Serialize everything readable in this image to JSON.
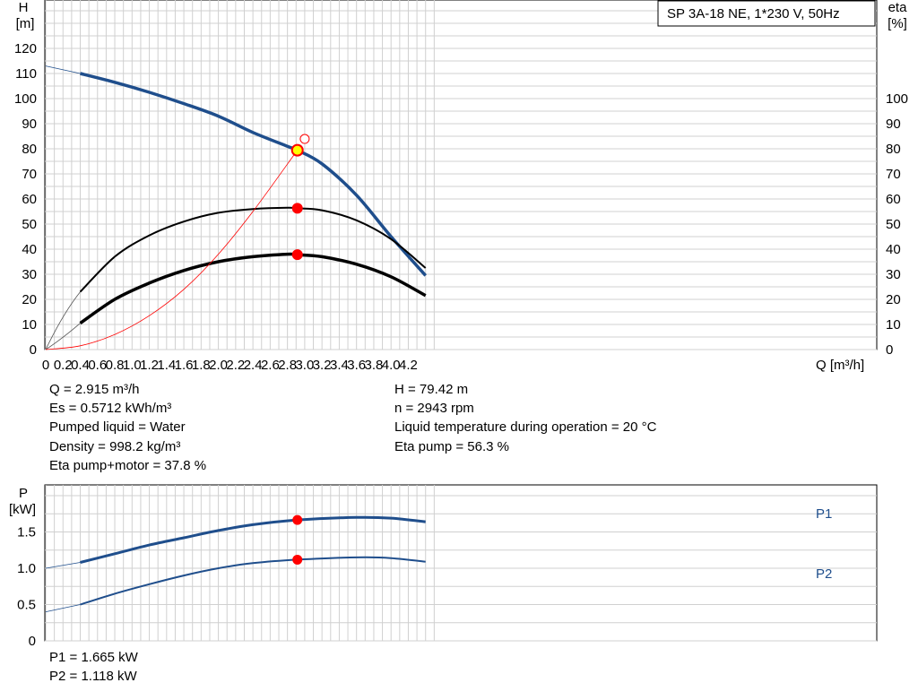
{
  "chart_data": [
    {
      "type": "line",
      "title": "SP 3A-18 NE, 1*230 V, 50Hz",
      "xlabel": "Q [m³/h]",
      "ylabel_left": [
        "H",
        "[m]"
      ],
      "ylabel_right": [
        "eta",
        "[%]"
      ],
      "xlim": [
        0,
        4.4
      ],
      "ylim": [
        0,
        130
      ],
      "x_ticks": [
        "0",
        "0.2",
        "0.4",
        "0.6",
        "0.8",
        "1.0",
        "1.2",
        "1.4",
        "1.6",
        "1.8",
        "2.0",
        "2.2",
        "2.4",
        "2.6",
        "2.8",
        "3.0",
        "3.2",
        "3.4",
        "3.6",
        "3.8",
        "4.0",
        "4.2"
      ],
      "y_ticks_left": [
        "0",
        "10",
        "20",
        "30",
        "40",
        "50",
        "60",
        "70",
        "80",
        "90",
        "100",
        "110",
        "120"
      ],
      "y_ticks_right": [
        "0",
        "10",
        "20",
        "30",
        "40",
        "50",
        "60",
        "70",
        "80",
        "90",
        "100"
      ],
      "grid": true,
      "series": [
        {
          "color": "#1f4e8c",
          "x": [
            0.4,
            0.8,
            1.2,
            1.6,
            2.0,
            2.4,
            2.8,
            2.915,
            3.2,
            3.6,
            4.0,
            4.4
          ],
          "values": [
            110,
            106.5,
            102.5,
            98,
            93,
            86.5,
            81,
            79.42,
            74,
            61.5,
            45,
            29.5
          ],
          "extrapolated_to": [
            0,
            113
          ]
        },
        {
          "color": "#000000",
          "x": [
            0.4,
            0.8,
            1.2,
            1.6,
            2.0,
            2.4,
            2.8,
            2.915,
            3.2,
            3.6,
            4.0,
            4.4
          ],
          "values": [
            23,
            37,
            45.5,
            51,
            54.5,
            56,
            56.5,
            56.3,
            55.5,
            51.5,
            44,
            32.5
          ]
        },
        {
          "color": "#000000",
          "x": [
            0.4,
            0.8,
            1.2,
            1.6,
            2.0,
            2.4,
            2.8,
            2.915,
            3.2,
            3.6,
            4.0,
            4.4
          ],
          "values": [
            10.5,
            20,
            26.5,
            31.5,
            35,
            37,
            38,
            37.8,
            37,
            34,
            29,
            21.5
          ]
        },
        {
          "color": "#ff0000",
          "x": [
            0,
            0.4,
            0.8,
            1.2,
            1.6,
            2.0,
            2.4,
            2.915
          ],
          "values": [
            0,
            1.5,
            6,
            13.5,
            24,
            38,
            55,
            79.42
          ]
        }
      ],
      "operating_point": {
        "x": 2.915,
        "H": 79.42,
        "eta_pump": 56.3,
        "eta_total": 37.8
      }
    },
    {
      "type": "line",
      "ylabel": [
        "P",
        "[kW]"
      ],
      "xlim": [
        0,
        4.4
      ],
      "ylim": [
        0,
        2.0
      ],
      "y_ticks": [
        "0",
        "0.5",
        "1.0",
        "1.5"
      ],
      "grid": true,
      "series": [
        {
          "name": "P1",
          "color": "#1f4e8c",
          "x": [
            0,
            0.4,
            0.8,
            1.2,
            1.6,
            2.0,
            2.4,
            2.915,
            3.6,
            4.0,
            4.4
          ],
          "values": [
            1.0,
            1.08,
            1.2,
            1.32,
            1.42,
            1.52,
            1.6,
            1.665,
            1.7,
            1.69,
            1.64
          ]
        },
        {
          "name": "P2",
          "color": "#1f4e8c",
          "x": [
            0,
            0.4,
            0.8,
            1.2,
            1.6,
            2.0,
            2.4,
            2.915,
            3.6,
            4.0,
            4.4
          ],
          "values": [
            0.4,
            0.5,
            0.65,
            0.78,
            0.9,
            1.0,
            1.07,
            1.118,
            1.15,
            1.14,
            1.09
          ]
        }
      ]
    }
  ],
  "info": {
    "q": "Q = 2.915 m³/h",
    "es": "Es = 0.5712 kWh/m³",
    "liquid": "Pumped liquid = Water",
    "density": "Density = 998.2 kg/m³",
    "eta_total": "Eta pump+motor = 37.8 %",
    "h": "H = 79.42 m",
    "n": "n = 2943 rpm",
    "temp": "Liquid temperature during operation = 20 °C",
    "eta_pump": "Eta pump = 56.3 %",
    "p1": "P1 = 1.665 kW",
    "p2": "P2 = 1.118 kW"
  }
}
